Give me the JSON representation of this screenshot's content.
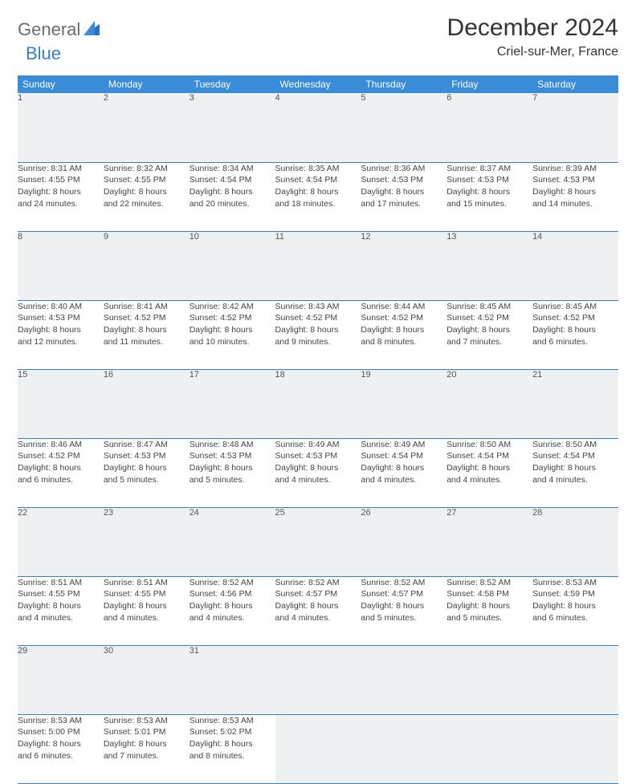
{
  "logo": {
    "gen": "General",
    "blue": "Blue"
  },
  "title": "December 2024",
  "location": "Criel-sur-Mer, France",
  "colors": {
    "header_row_bg": "#3a8bd8",
    "header_row_text": "#ffffff",
    "daynum_bg": "#eef0f1",
    "rule": "#3a7fc4",
    "logo_gray": "#6b6b6b",
    "logo_blue": "#3a7fc4",
    "body_bg": "#ffffff"
  },
  "typography": {
    "title_pt": 30,
    "location_pt": 16,
    "weekday_pt": 12,
    "daynum_pt": 11,
    "body_pt": 10.5
  },
  "weekdays": [
    "Sunday",
    "Monday",
    "Tuesday",
    "Wednesday",
    "Thursday",
    "Friday",
    "Saturday"
  ],
  "weeks": [
    [
      {
        "n": "1",
        "sr": "Sunrise: 8:31 AM",
        "ss": "Sunset: 4:55 PM",
        "d1": "Daylight: 8 hours",
        "d2": "and 24 minutes."
      },
      {
        "n": "2",
        "sr": "Sunrise: 8:32 AM",
        "ss": "Sunset: 4:55 PM",
        "d1": "Daylight: 8 hours",
        "d2": "and 22 minutes."
      },
      {
        "n": "3",
        "sr": "Sunrise: 8:34 AM",
        "ss": "Sunset: 4:54 PM",
        "d1": "Daylight: 8 hours",
        "d2": "and 20 minutes."
      },
      {
        "n": "4",
        "sr": "Sunrise: 8:35 AM",
        "ss": "Sunset: 4:54 PM",
        "d1": "Daylight: 8 hours",
        "d2": "and 18 minutes."
      },
      {
        "n": "5",
        "sr": "Sunrise: 8:36 AM",
        "ss": "Sunset: 4:53 PM",
        "d1": "Daylight: 8 hours",
        "d2": "and 17 minutes."
      },
      {
        "n": "6",
        "sr": "Sunrise: 8:37 AM",
        "ss": "Sunset: 4:53 PM",
        "d1": "Daylight: 8 hours",
        "d2": "and 15 minutes."
      },
      {
        "n": "7",
        "sr": "Sunrise: 8:39 AM",
        "ss": "Sunset: 4:53 PM",
        "d1": "Daylight: 8 hours",
        "d2": "and 14 minutes."
      }
    ],
    [
      {
        "n": "8",
        "sr": "Sunrise: 8:40 AM",
        "ss": "Sunset: 4:53 PM",
        "d1": "Daylight: 8 hours",
        "d2": "and 12 minutes."
      },
      {
        "n": "9",
        "sr": "Sunrise: 8:41 AM",
        "ss": "Sunset: 4:52 PM",
        "d1": "Daylight: 8 hours",
        "d2": "and 11 minutes."
      },
      {
        "n": "10",
        "sr": "Sunrise: 8:42 AM",
        "ss": "Sunset: 4:52 PM",
        "d1": "Daylight: 8 hours",
        "d2": "and 10 minutes."
      },
      {
        "n": "11",
        "sr": "Sunrise: 8:43 AM",
        "ss": "Sunset: 4:52 PM",
        "d1": "Daylight: 8 hours",
        "d2": "and 9 minutes."
      },
      {
        "n": "12",
        "sr": "Sunrise: 8:44 AM",
        "ss": "Sunset: 4:52 PM",
        "d1": "Daylight: 8 hours",
        "d2": "and 8 minutes."
      },
      {
        "n": "13",
        "sr": "Sunrise: 8:45 AM",
        "ss": "Sunset: 4:52 PM",
        "d1": "Daylight: 8 hours",
        "d2": "and 7 minutes."
      },
      {
        "n": "14",
        "sr": "Sunrise: 8:45 AM",
        "ss": "Sunset: 4:52 PM",
        "d1": "Daylight: 8 hours",
        "d2": "and 6 minutes."
      }
    ],
    [
      {
        "n": "15",
        "sr": "Sunrise: 8:46 AM",
        "ss": "Sunset: 4:52 PM",
        "d1": "Daylight: 8 hours",
        "d2": "and 6 minutes."
      },
      {
        "n": "16",
        "sr": "Sunrise: 8:47 AM",
        "ss": "Sunset: 4:53 PM",
        "d1": "Daylight: 8 hours",
        "d2": "and 5 minutes."
      },
      {
        "n": "17",
        "sr": "Sunrise: 8:48 AM",
        "ss": "Sunset: 4:53 PM",
        "d1": "Daylight: 8 hours",
        "d2": "and 5 minutes."
      },
      {
        "n": "18",
        "sr": "Sunrise: 8:49 AM",
        "ss": "Sunset: 4:53 PM",
        "d1": "Daylight: 8 hours",
        "d2": "and 4 minutes."
      },
      {
        "n": "19",
        "sr": "Sunrise: 8:49 AM",
        "ss": "Sunset: 4:54 PM",
        "d1": "Daylight: 8 hours",
        "d2": "and 4 minutes."
      },
      {
        "n": "20",
        "sr": "Sunrise: 8:50 AM",
        "ss": "Sunset: 4:54 PM",
        "d1": "Daylight: 8 hours",
        "d2": "and 4 minutes."
      },
      {
        "n": "21",
        "sr": "Sunrise: 8:50 AM",
        "ss": "Sunset: 4:54 PM",
        "d1": "Daylight: 8 hours",
        "d2": "and 4 minutes."
      }
    ],
    [
      {
        "n": "22",
        "sr": "Sunrise: 8:51 AM",
        "ss": "Sunset: 4:55 PM",
        "d1": "Daylight: 8 hours",
        "d2": "and 4 minutes."
      },
      {
        "n": "23",
        "sr": "Sunrise: 8:51 AM",
        "ss": "Sunset: 4:55 PM",
        "d1": "Daylight: 8 hours",
        "d2": "and 4 minutes."
      },
      {
        "n": "24",
        "sr": "Sunrise: 8:52 AM",
        "ss": "Sunset: 4:56 PM",
        "d1": "Daylight: 8 hours",
        "d2": "and 4 minutes."
      },
      {
        "n": "25",
        "sr": "Sunrise: 8:52 AM",
        "ss": "Sunset: 4:57 PM",
        "d1": "Daylight: 8 hours",
        "d2": "and 4 minutes."
      },
      {
        "n": "26",
        "sr": "Sunrise: 8:52 AM",
        "ss": "Sunset: 4:57 PM",
        "d1": "Daylight: 8 hours",
        "d2": "and 5 minutes."
      },
      {
        "n": "27",
        "sr": "Sunrise: 8:52 AM",
        "ss": "Sunset: 4:58 PM",
        "d1": "Daylight: 8 hours",
        "d2": "and 5 minutes."
      },
      {
        "n": "28",
        "sr": "Sunrise: 8:53 AM",
        "ss": "Sunset: 4:59 PM",
        "d1": "Daylight: 8 hours",
        "d2": "and 6 minutes."
      }
    ],
    [
      {
        "n": "29",
        "sr": "Sunrise: 8:53 AM",
        "ss": "Sunset: 5:00 PM",
        "d1": "Daylight: 8 hours",
        "d2": "and 6 minutes."
      },
      {
        "n": "30",
        "sr": "Sunrise: 8:53 AM",
        "ss": "Sunset: 5:01 PM",
        "d1": "Daylight: 8 hours",
        "d2": "and 7 minutes."
      },
      {
        "n": "31",
        "sr": "Sunrise: 8:53 AM",
        "ss": "Sunset: 5:02 PM",
        "d1": "Daylight: 8 hours",
        "d2": "and 8 minutes."
      },
      {
        "blank": true
      },
      {
        "blank": true
      },
      {
        "blank": true
      },
      {
        "blank": true
      }
    ]
  ]
}
